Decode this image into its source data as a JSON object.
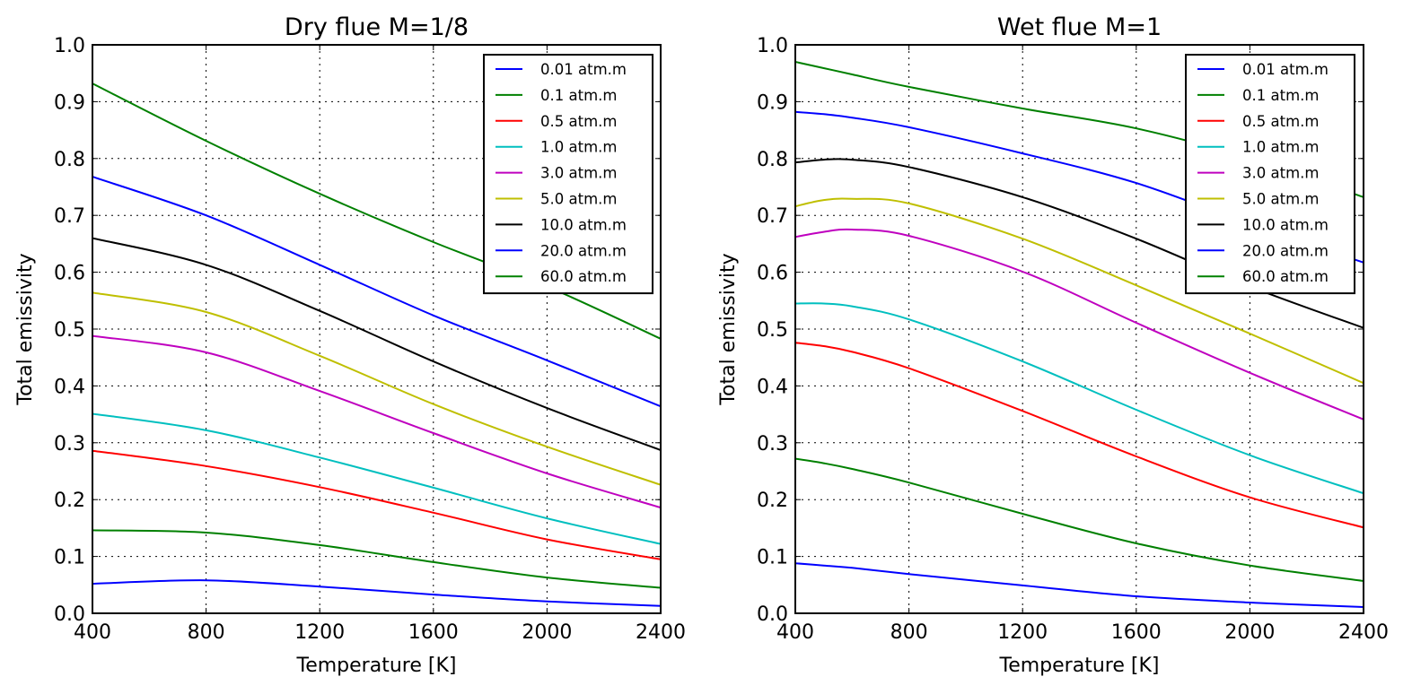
{
  "chart_data": [
    {
      "type": "line",
      "title": "Dry flue M=1/8",
      "xlabel": "Temperature [K]",
      "ylabel": "Total emissivity",
      "xlim": [
        400,
        2400
      ],
      "ylim": [
        0.0,
        1.0
      ],
      "xticks": [
        400,
        800,
        1200,
        1600,
        2000,
        2400
      ],
      "xtick_labels": [
        "400",
        "800",
        "1200",
        "1600",
        "2000",
        "2400"
      ],
      "yticks": [
        0.0,
        0.1,
        0.2,
        0.3,
        0.4,
        0.5,
        0.6,
        0.7,
        0.8,
        0.9,
        1.0
      ],
      "ytick_labels": [
        "0.0",
        "0.1",
        "0.2",
        "0.3",
        "0.4",
        "0.5",
        "0.6",
        "0.7",
        "0.8",
        "0.9",
        "1.0"
      ],
      "grid": true,
      "legend_position": "top-right",
      "x": [
        400,
        800,
        1200,
        1600,
        2000,
        2400
      ],
      "series": [
        {
          "name": "0.01 atm.m",
          "color": "#0000ff",
          "values": [
            0.052,
            0.058,
            0.047,
            0.033,
            0.021,
            0.013
          ]
        },
        {
          "name": "0.1 atm.m",
          "color": "#008000",
          "values": [
            0.146,
            0.142,
            0.12,
            0.09,
            0.063,
            0.045
          ]
        },
        {
          "name": "0.5 atm.m",
          "color": "#ff0000",
          "values": [
            0.286,
            0.259,
            0.222,
            0.177,
            0.13,
            0.095
          ]
        },
        {
          "name": "1.0 atm.m",
          "color": "#00bfbf",
          "values": [
            0.351,
            0.322,
            0.274,
            0.221,
            0.167,
            0.122
          ]
        },
        {
          "name": "3.0 atm.m",
          "color": "#bf00bf",
          "values": [
            0.488,
            0.459,
            0.391,
            0.317,
            0.246,
            0.186
          ]
        },
        {
          "name": "5.0 atm.m",
          "color": "#bfbf00",
          "values": [
            0.564,
            0.53,
            0.453,
            0.368,
            0.293,
            0.226
          ]
        },
        {
          "name": "10.0 atm.m",
          "color": "#000000",
          "values": [
            0.66,
            0.613,
            0.532,
            0.443,
            0.361,
            0.287
          ]
        },
        {
          "name": "20.0 atm.m",
          "color": "#0000ff",
          "values": [
            0.768,
            0.7,
            0.613,
            0.524,
            0.445,
            0.364
          ]
        },
        {
          "name": "60.0 atm.m",
          "color": "#008000",
          "values": [
            0.932,
            0.831,
            0.738,
            0.653,
            0.575,
            0.483
          ]
        }
      ]
    },
    {
      "type": "line",
      "title": "Wet flue M=1",
      "xlabel": "Temperature [K]",
      "ylabel": "Total emissivity",
      "xlim": [
        400,
        2400
      ],
      "ylim": [
        0.0,
        1.0
      ],
      "xticks": [
        400,
        800,
        1200,
        1600,
        2000,
        2400
      ],
      "xtick_labels": [
        "400",
        "800",
        "1200",
        "1600",
        "2000",
        "2400"
      ],
      "yticks": [
        0.0,
        0.1,
        0.2,
        0.3,
        0.4,
        0.5,
        0.6,
        0.7,
        0.8,
        0.9,
        1.0
      ],
      "ytick_labels": [
        "0.0",
        "0.1",
        "0.2",
        "0.3",
        "0.4",
        "0.5",
        "0.6",
        "0.7",
        "0.8",
        "0.9",
        "1.0"
      ],
      "grid": true,
      "legend_position": "top-right",
      "x": [
        400,
        500,
        600,
        800,
        1200,
        1600,
        2000,
        2400
      ],
      "series": [
        {
          "name": "0.01 atm.m",
          "color": "#0000ff",
          "values": [
            0.088,
            0.084,
            0.08,
            0.069,
            0.049,
            0.03,
            0.019,
            0.011
          ]
        },
        {
          "name": "0.1 atm.m",
          "color": "#008000",
          "values": [
            0.272,
            0.264,
            0.254,
            0.23,
            0.175,
            0.123,
            0.084,
            0.057
          ]
        },
        {
          "name": "0.5 atm.m",
          "color": "#ff0000",
          "values": [
            0.476,
            0.47,
            0.46,
            0.431,
            0.356,
            0.276,
            0.204,
            0.151
          ]
        },
        {
          "name": "1.0 atm.m",
          "color": "#00bfbf",
          "values": [
            0.545,
            0.545,
            0.54,
            0.517,
            0.443,
            0.358,
            0.278,
            0.211
          ]
        },
        {
          "name": "3.0 atm.m",
          "color": "#bf00bf",
          "values": [
            0.662,
            0.671,
            0.675,
            0.664,
            0.601,
            0.511,
            0.423,
            0.341
          ]
        },
        {
          "name": "5.0 atm.m",
          "color": "#bfbf00",
          "values": [
            0.716,
            0.727,
            0.729,
            0.721,
            0.659,
            0.577,
            0.492,
            0.405
          ]
        },
        {
          "name": "10.0 atm.m",
          "color": "#000000",
          "values": [
            0.793,
            0.798,
            0.798,
            0.785,
            0.732,
            0.659,
            0.575,
            0.502
          ]
        },
        {
          "name": "20.0 atm.m",
          "color": "#0000ff",
          "values": [
            0.882,
            0.878,
            0.872,
            0.855,
            0.809,
            0.757,
            0.685,
            0.617
          ]
        },
        {
          "name": "60.0 atm.m",
          "color": "#008000",
          "values": [
            0.97,
            0.959,
            0.948,
            0.926,
            0.888,
            0.853,
            0.8,
            0.732
          ]
        }
      ]
    }
  ]
}
